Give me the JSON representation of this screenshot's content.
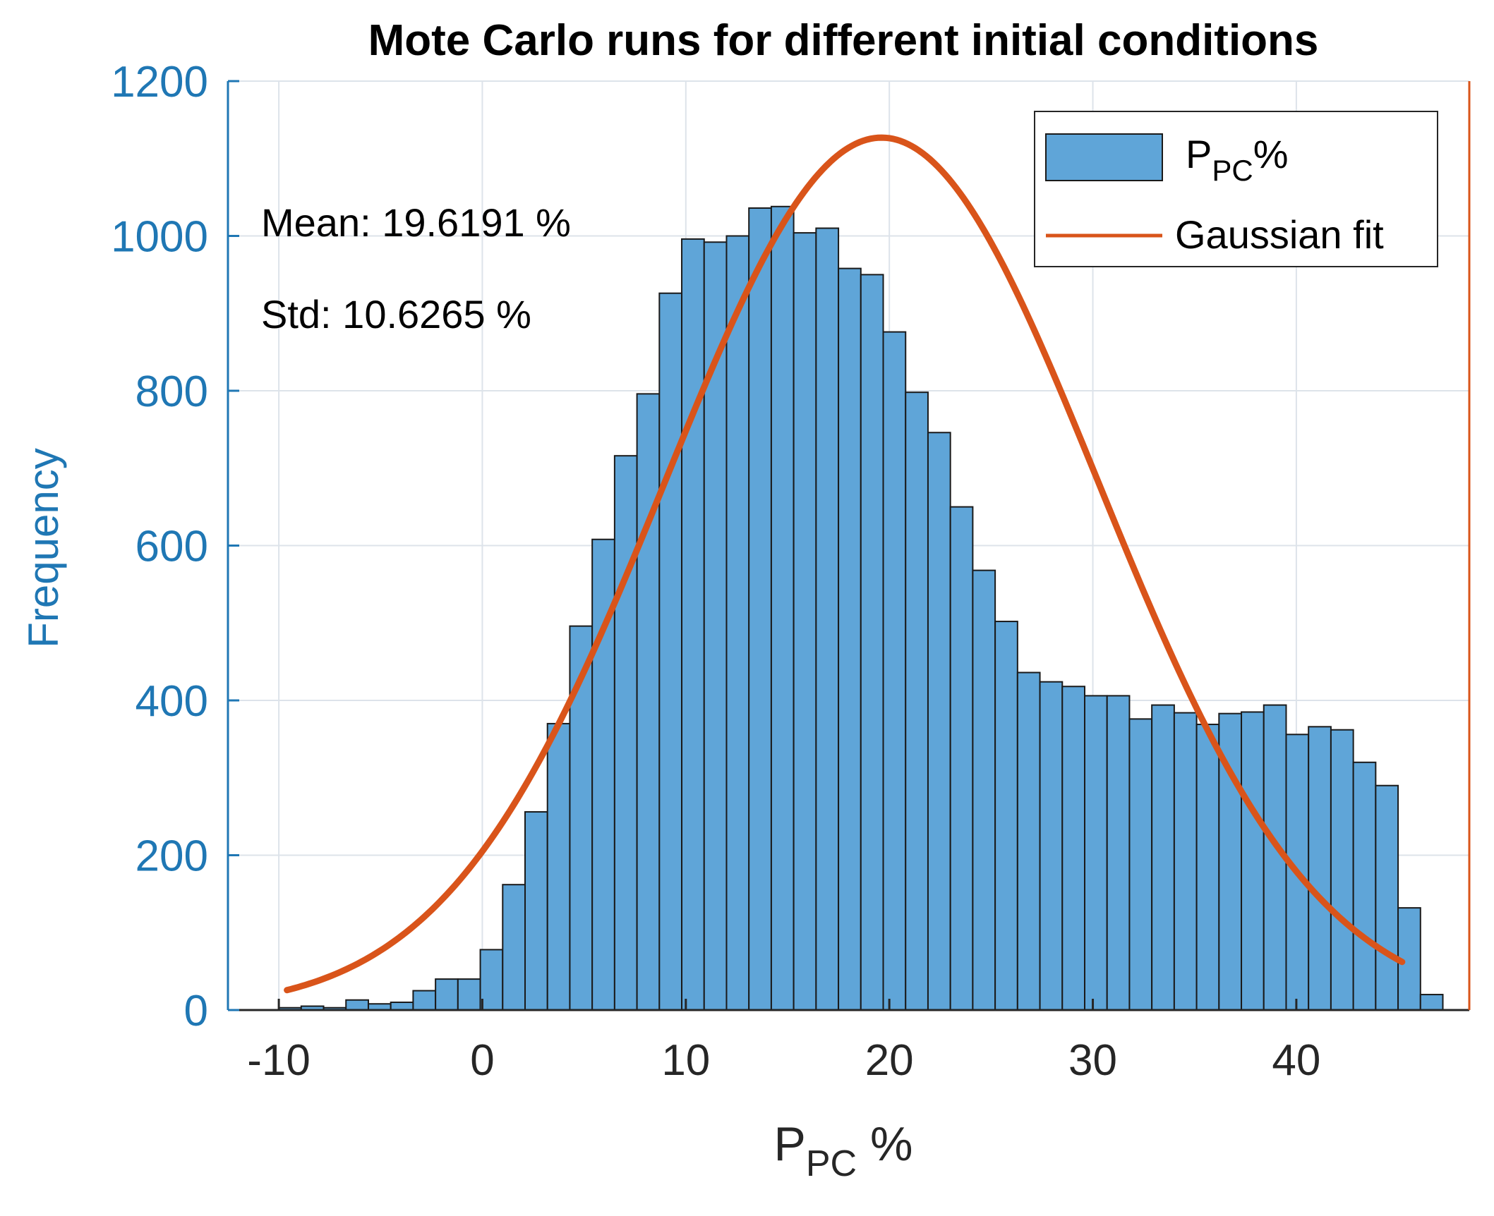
{
  "chart_data": {
    "type": "bar",
    "title": "Mote Carlo runs for different initial conditions",
    "xlabel": {
      "main": "P",
      "sub": "PC",
      "suffix": " %"
    },
    "ylabel": "Frequency",
    "xlim": [
      -12.5,
      48.5
    ],
    "ylim": [
      0,
      1200
    ],
    "xticks": [
      -10,
      0,
      10,
      20,
      30,
      40
    ],
    "yticks": [
      0,
      200,
      400,
      600,
      800,
      1000,
      1200
    ],
    "grid": true,
    "bin_start": -10,
    "bin_width": 1.1,
    "counts": [
      3,
      5,
      3,
      13,
      8,
      10,
      25,
      40,
      40,
      78,
      162,
      256,
      370,
      496,
      608,
      716,
      796,
      926,
      996,
      992,
      1000,
      1036,
      1038,
      1004,
      1010,
      958,
      950,
      876,
      798,
      746,
      650,
      568,
      502,
      436,
      424,
      418,
      406,
      406,
      376,
      394,
      384,
      369,
      383,
      385,
      394,
      356,
      366,
      362,
      320,
      290,
      132,
      20
    ],
    "gaussian_fit": {
      "mean": 19.6191,
      "std": 10.6265,
      "peak": 1127,
      "x_range": [
        -9.6,
        45.2
      ]
    },
    "annotations": [
      "Mean: 19.6191 %",
      "Std: 10.6265 %"
    ],
    "legend": {
      "position": "top-right",
      "entries": [
        {
          "label": "P",
          "sub": "PC",
          "suffix": "%"
        },
        {
          "label": "Gaussian fit"
        }
      ]
    },
    "colors": {
      "bar_fill": "#5fa5d8",
      "bar_edge": "#1a1a1a",
      "fit_line": "#d9541a",
      "axis_blue": "#1f77b4",
      "axis_dark": "#262626",
      "grid": "#dde3ea"
    }
  }
}
